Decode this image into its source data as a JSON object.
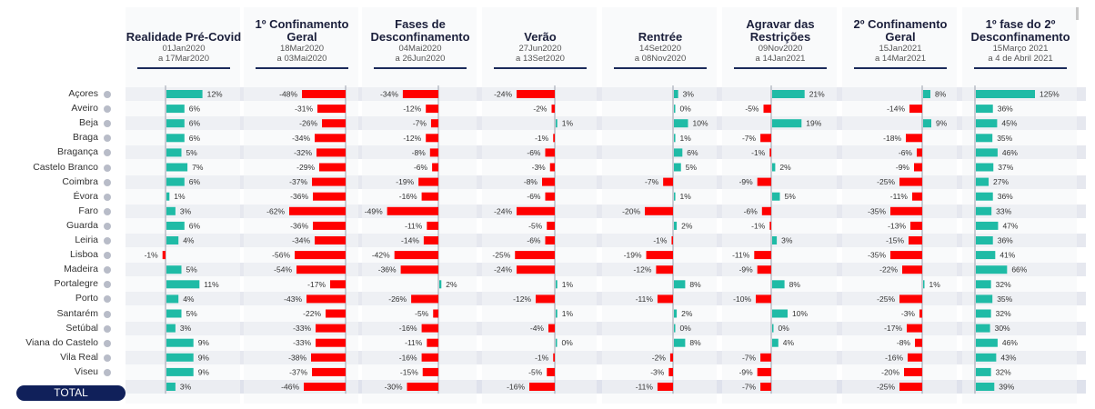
{
  "total_label": "TOTAL",
  "colors": {
    "positive": "#1fbba6",
    "negative": "#ff0000",
    "header": "#1b1f3b",
    "underline": "#1b2a5a"
  },
  "chart_data": {
    "type": "bar",
    "regions": [
      "Açores",
      "Aveiro",
      "Beja",
      "Braga",
      "Bragança",
      "Castelo Branco",
      "Coimbra",
      "Évora",
      "Faro",
      "Guarda",
      "Leiria",
      "Lisboa",
      "Madeira",
      "Portalegre",
      "Porto",
      "Santarém",
      "Setúbal",
      "Viana do Castelo",
      "Vila Real",
      "Viseu",
      "TOTAL"
    ],
    "periods": [
      {
        "title": "Realidade Pré-Covid",
        "date1": "01Jan2020",
        "date2": "a 17Mar2020",
        "values": [
          12,
          6,
          6,
          6,
          5,
          7,
          6,
          1,
          3,
          6,
          4,
          -1,
          5,
          11,
          4,
          5,
          3,
          9,
          9,
          9,
          3
        ]
      },
      {
        "title": "1º Confinamento Geral",
        "date1": "18Mar2020",
        "date2": "a 03Mai2020",
        "values": [
          -48,
          -31,
          -26,
          -34,
          -32,
          -29,
          -37,
          -36,
          -62,
          -36,
          -34,
          -56,
          -54,
          -17,
          -43,
          -22,
          -33,
          -33,
          -38,
          -37,
          -46
        ]
      },
      {
        "title": "Fases de Desconfinamento",
        "date1": "04Mai2020",
        "date2": "a 26Jun2020",
        "values": [
          -34,
          -12,
          -7,
          -12,
          -8,
          -6,
          -19,
          -16,
          -49,
          -11,
          -14,
          -42,
          -36,
          2,
          -26,
          -5,
          -16,
          -11,
          -16,
          -15,
          -30
        ]
      },
      {
        "title": "Verão",
        "date1": "27Jun2020",
        "date2": "a 13Set2020",
        "values": [
          -24,
          -2,
          1,
          -1,
          -6,
          -3,
          -8,
          -6,
          -24,
          -5,
          -6,
          -25,
          -24,
          1,
          -12,
          1,
          -4,
          0,
          -1,
          -5,
          -16
        ]
      },
      {
        "title": "Rentrée",
        "date1": "14Set2020",
        "date2": "a 08Nov2020",
        "values": [
          3,
          0,
          10,
          1,
          6,
          5,
          -7,
          1,
          -20,
          2,
          -1,
          -19,
          -12,
          8,
          -11,
          2,
          0,
          8,
          -2,
          -3,
          -11
        ]
      },
      {
        "title": "Agravar das Restrições",
        "date1": "09Nov2020",
        "date2": "a 14Jan2021",
        "values": [
          21,
          -5,
          19,
          -7,
          -1,
          2,
          -9,
          5,
          -6,
          -1,
          3,
          -11,
          -9,
          8,
          -10,
          10,
          0,
          4,
          -7,
          -9,
          -7
        ]
      },
      {
        "title": "2º Confinamento Geral",
        "date1": "15Jan2021",
        "date2": "a 14Mar2021",
        "values": [
          8,
          -14,
          9,
          -18,
          -6,
          -9,
          -25,
          -11,
          -35,
          -13,
          -15,
          -35,
          -22,
          1,
          -25,
          -3,
          -17,
          -8,
          -16,
          -20,
          -25
        ]
      },
      {
        "title": "1º fase do 2º Desconfinamento",
        "date1": "15Março 2021",
        "date2": "a 4 de Abril 2021",
        "values": [
          125,
          36,
          45,
          35,
          46,
          37,
          27,
          36,
          33,
          47,
          36,
          41,
          66,
          32,
          35,
          32,
          30,
          46,
          43,
          32,
          39
        ]
      }
    ]
  }
}
